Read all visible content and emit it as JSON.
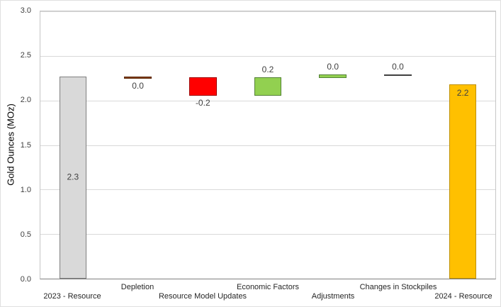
{
  "chart_data": {
    "type": "bar",
    "subtype": "waterfall",
    "title": "",
    "ylabel": "Gold Ounces (MOz)",
    "xlabel": "",
    "ylim": [
      0.0,
      3.0
    ],
    "ytick_step": 0.5,
    "yticks": [
      "0.0",
      "0.5",
      "1.0",
      "1.5",
      "2.0",
      "2.5",
      "3.0"
    ],
    "grid": true,
    "legend": "none",
    "categories": [
      "2023 - Resource",
      "Depletion",
      "Resource Model Updates",
      "Economic Factors",
      "Adjustments",
      "Changes in Stockpiles",
      "2024 - Resource"
    ],
    "bars": [
      {
        "category": "2023 - Resource",
        "value": 2.3,
        "value_label": "2.3",
        "start": 0.0,
        "end": 2.27,
        "fill": "#d9d9d9",
        "stroke": "#7f7f7f",
        "label_placement": "inside-center"
      },
      {
        "category": "Depletion",
        "value": 0.0,
        "value_label": "0.0",
        "start": 2.245,
        "end": 2.27,
        "fill": "#843c0c",
        "stroke": "#5e2a08",
        "label_placement": "below"
      },
      {
        "category": "Resource Model Updates",
        "value": -0.2,
        "value_label": "-0.2",
        "start": 2.05,
        "end": 2.26,
        "fill": "#ff0000",
        "stroke": "#9c0000",
        "label_placement": "below"
      },
      {
        "category": "Economic Factors",
        "value": 0.2,
        "value_label": "0.2",
        "start": 2.05,
        "end": 2.26,
        "fill": "#92d050",
        "stroke": "#538135",
        "label_placement": "above"
      },
      {
        "category": "Adjustments",
        "value": 0.0,
        "value_label": "0.0",
        "start": 2.255,
        "end": 2.29,
        "fill": "#92d050",
        "stroke": "#538135",
        "label_placement": "above"
      },
      {
        "category": "Changes in Stockpiles",
        "value": 0.0,
        "value_label": "0.0",
        "start": 2.28,
        "end": 2.295,
        "fill": "#404040",
        "stroke": "#404040",
        "label_placement": "above"
      },
      {
        "category": "2024 - Resource",
        "value": 2.2,
        "value_label": "2.2",
        "start": 0.0,
        "end": 2.18,
        "fill": "#ffc000",
        "stroke": "#bf9000",
        "label_placement": "inside-end"
      }
    ]
  }
}
